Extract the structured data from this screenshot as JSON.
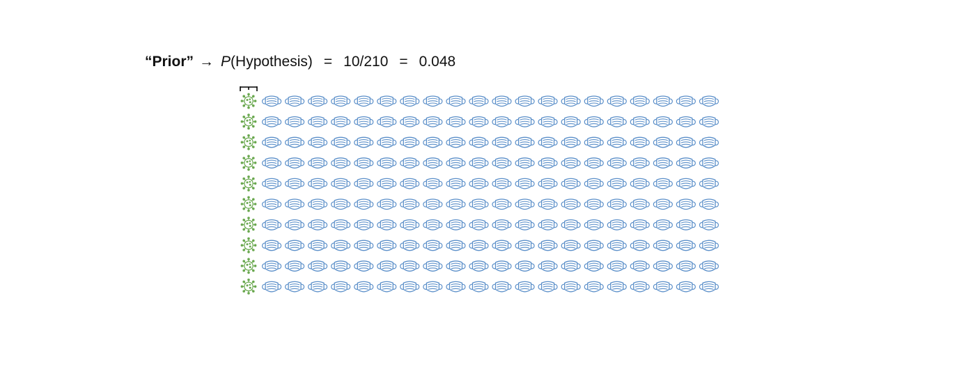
{
  "formula": {
    "prior_label": "“Prior”",
    "arrow": "→",
    "p_symbol": "P",
    "p_argument": "(Hypothesis)",
    "equals_1": "=",
    "fraction": "10/210",
    "equals_2": "=",
    "result": "0.048"
  },
  "grid": {
    "rows": 10,
    "virus_per_row": 1,
    "masks_per_row": 20,
    "virus_icon": "virus-icon",
    "mask_icon": "face-mask-icon",
    "colors": {
      "virus": "#6aa84f",
      "mask": "#5b8fc9"
    }
  }
}
